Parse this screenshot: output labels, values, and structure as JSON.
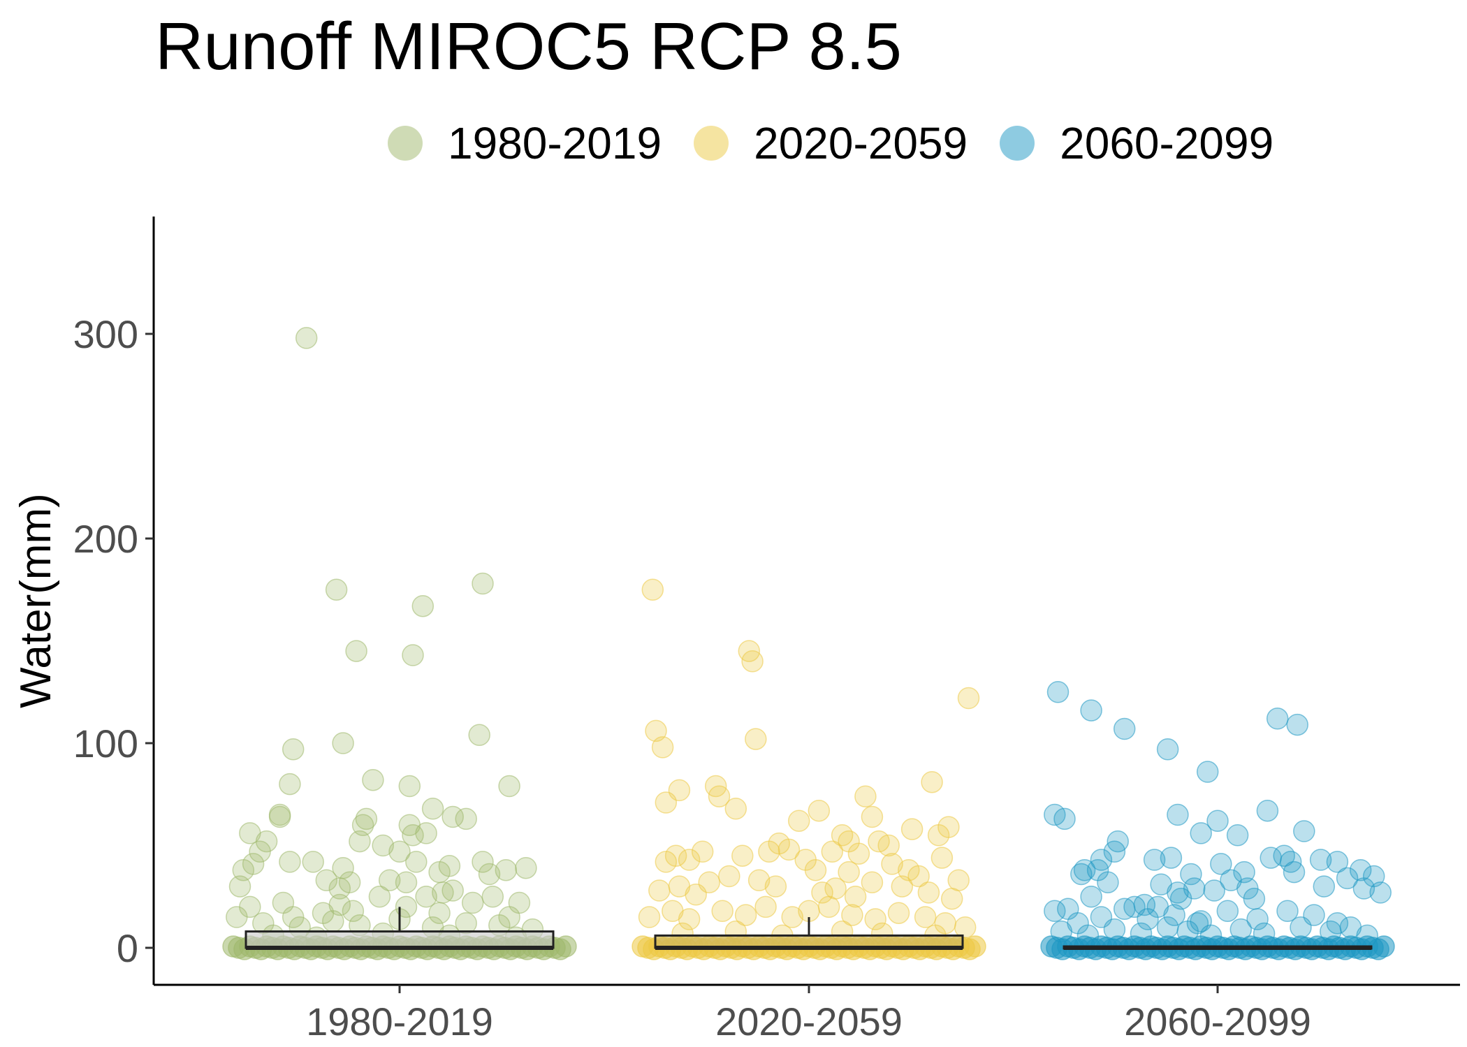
{
  "chart_data": {
    "type": "box-jitter",
    "title": "Runoff MIROC5 RCP 8.5",
    "ylabel": "Water(mm)",
    "xlabel": "",
    "categories": [
      "1980-2019",
      "2020-2059",
      "2060-2099"
    ],
    "yticks": [
      0,
      100,
      200,
      300
    ],
    "ylim": [
      -17,
      357
    ],
    "legend_position": "top",
    "grid": false,
    "colors": [
      "#9fb86b",
      "#ecc944",
      "#1e97c3"
    ],
    "box_fill": [
      "#c8c8c8",
      "#c8b25f",
      "#1e97c3"
    ],
    "box_stats": [
      {
        "q1": 0,
        "median": 0,
        "q3": 8,
        "whisker_low": 0,
        "whisker_high": 20
      },
      {
        "q1": 0,
        "median": 0,
        "q3": 6,
        "whisker_low": 0,
        "whisker_high": 15
      },
      {
        "q1": 0,
        "median": 0,
        "q3": 0.5,
        "whisker_low": 0,
        "whisker_high": 1
      }
    ],
    "series": [
      {
        "name": "1980-2019",
        "points": [
          [
            0.22,
            298
          ],
          [
            0.31,
            175
          ],
          [
            0.37,
            145
          ],
          [
            0.33,
            100
          ],
          [
            0.18,
            97
          ],
          [
            0.17,
            80
          ],
          [
            0.42,
            82
          ],
          [
            0.75,
            178
          ],
          [
            0.57,
            167
          ],
          [
            0.54,
            143
          ],
          [
            0.74,
            104
          ],
          [
            0.83,
            79
          ],
          [
            0.53,
            79
          ],
          [
            0.14,
            65
          ],
          [
            0.05,
            56
          ],
          [
            0.14,
            64
          ],
          [
            0.4,
            63
          ],
          [
            0.7,
            63
          ],
          [
            0.66,
            64
          ],
          [
            0.6,
            68
          ],
          [
            0.1,
            52
          ],
          [
            0.08,
            47
          ],
          [
            0.39,
            60
          ],
          [
            0.38,
            52
          ],
          [
            0.45,
            50
          ],
          [
            0.53,
            60
          ],
          [
            0.58,
            56
          ],
          [
            0.54,
            55
          ],
          [
            0.5,
            47
          ],
          [
            0.06,
            41
          ],
          [
            0.17,
            42
          ],
          [
            0.24,
            42
          ],
          [
            0.03,
            38
          ],
          [
            0.02,
            30
          ],
          [
            0.28,
            33
          ],
          [
            0.33,
            39
          ],
          [
            0.32,
            29
          ],
          [
            0.35,
            32
          ],
          [
            0.55,
            42
          ],
          [
            0.47,
            33
          ],
          [
            0.52,
            32
          ],
          [
            0.62,
            37
          ],
          [
            0.65,
            40
          ],
          [
            0.63,
            27
          ],
          [
            0.75,
            42
          ],
          [
            0.77,
            36
          ],
          [
            0.82,
            38
          ],
          [
            0.88,
            39
          ],
          [
            0.05,
            20
          ],
          [
            0.15,
            22
          ],
          [
            0.18,
            15
          ],
          [
            0.27,
            17
          ],
          [
            0.32,
            21
          ],
          [
            0.44,
            25
          ],
          [
            0.52,
            20
          ],
          [
            0.58,
            25
          ],
          [
            0.66,
            28
          ],
          [
            0.72,
            22
          ],
          [
            0.78,
            25
          ],
          [
            0.86,
            22
          ],
          [
            0.09,
            12
          ],
          [
            0.2,
            10
          ],
          [
            0.3,
            13
          ],
          [
            0.38,
            11
          ],
          [
            0.5,
            14
          ],
          [
            0.6,
            10
          ],
          [
            0.7,
            12
          ],
          [
            0.8,
            11
          ],
          [
            0.9,
            9
          ],
          [
            0.12,
            6
          ],
          [
            0.25,
            5
          ],
          [
            0.45,
            7
          ],
          [
            0.65,
            6
          ],
          [
            0.85,
            5
          ],
          [
            0.01,
            15
          ],
          [
            0.36,
            18
          ],
          [
            0.62,
            17
          ],
          [
            0.83,
            15
          ]
        ]
      },
      {
        "name": "2020-2059",
        "points": [
          [
            0.03,
            175
          ],
          [
            0.32,
            145
          ],
          [
            0.33,
            140
          ],
          [
            0.34,
            102
          ],
          [
            0.04,
            106
          ],
          [
            0.06,
            98
          ],
          [
            0.98,
            122
          ],
          [
            0.07,
            71
          ],
          [
            0.11,
            77
          ],
          [
            0.22,
            79
          ],
          [
            0.23,
            74
          ],
          [
            0.28,
            68
          ],
          [
            0.53,
            67
          ],
          [
            0.67,
            74
          ],
          [
            0.69,
            64
          ],
          [
            0.87,
            81
          ],
          [
            0.92,
            59
          ],
          [
            0.89,
            55
          ],
          [
            0.47,
            62
          ],
          [
            0.6,
            55
          ],
          [
            0.62,
            52
          ],
          [
            0.71,
            52
          ],
          [
            0.74,
            50
          ],
          [
            0.81,
            58
          ],
          [
            0.41,
            51
          ],
          [
            0.38,
            47
          ],
          [
            0.44,
            48
          ],
          [
            0.57,
            47
          ],
          [
            0.65,
            46
          ],
          [
            0.9,
            44
          ],
          [
            0.07,
            42
          ],
          [
            0.1,
            45
          ],
          [
            0.14,
            43
          ],
          [
            0.18,
            47
          ],
          [
            0.3,
            45
          ],
          [
            0.35,
            33
          ],
          [
            0.49,
            43
          ],
          [
            0.52,
            38
          ],
          [
            0.62,
            37
          ],
          [
            0.75,
            41
          ],
          [
            0.8,
            38
          ],
          [
            0.83,
            35
          ],
          [
            0.95,
            33
          ],
          [
            0.05,
            28
          ],
          [
            0.11,
            30
          ],
          [
            0.16,
            26
          ],
          [
            0.2,
            32
          ],
          [
            0.26,
            35
          ],
          [
            0.4,
            30
          ],
          [
            0.54,
            27
          ],
          [
            0.58,
            29
          ],
          [
            0.64,
            25
          ],
          [
            0.69,
            32
          ],
          [
            0.78,
            30
          ],
          [
            0.86,
            27
          ],
          [
            0.93,
            24
          ],
          [
            0.02,
            15
          ],
          [
            0.09,
            18
          ],
          [
            0.14,
            14
          ],
          [
            0.24,
            18
          ],
          [
            0.31,
            16
          ],
          [
            0.37,
            20
          ],
          [
            0.45,
            15
          ],
          [
            0.5,
            18
          ],
          [
            0.56,
            20
          ],
          [
            0.63,
            16
          ],
          [
            0.7,
            14
          ],
          [
            0.77,
            17
          ],
          [
            0.85,
            15
          ],
          [
            0.91,
            12
          ],
          [
            0.97,
            10
          ],
          [
            0.12,
            7
          ],
          [
            0.28,
            8
          ],
          [
            0.42,
            6
          ],
          [
            0.6,
            8
          ],
          [
            0.72,
            7
          ],
          [
            0.88,
            6
          ]
        ]
      },
      {
        "name": "2060-2099",
        "points": [
          [
            0.02,
            125
          ],
          [
            0.12,
            116
          ],
          [
            0.22,
            107
          ],
          [
            0.35,
            97
          ],
          [
            0.68,
            112
          ],
          [
            0.74,
            109
          ],
          [
            0.47,
            86
          ],
          [
            0.01,
            65
          ],
          [
            0.04,
            63
          ],
          [
            0.38,
            65
          ],
          [
            0.5,
            62
          ],
          [
            0.65,
            67
          ],
          [
            0.45,
            56
          ],
          [
            0.56,
            55
          ],
          [
            0.76,
            57
          ],
          [
            0.2,
            52
          ],
          [
            0.19,
            47
          ],
          [
            0.15,
            43
          ],
          [
            0.1,
            38
          ],
          [
            0.09,
            36
          ],
          [
            0.14,
            38
          ],
          [
            0.31,
            43
          ],
          [
            0.36,
            44
          ],
          [
            0.51,
            41
          ],
          [
            0.42,
            36
          ],
          [
            0.58,
            37
          ],
          [
            0.7,
            45
          ],
          [
            0.72,
            42
          ],
          [
            0.81,
            43
          ],
          [
            0.86,
            42
          ],
          [
            0.93,
            38
          ],
          [
            0.97,
            35
          ],
          [
            0.12,
            25
          ],
          [
            0.17,
            32
          ],
          [
            0.25,
            20
          ],
          [
            0.33,
            31
          ],
          [
            0.38,
            27
          ],
          [
            0.43,
            29
          ],
          [
            0.49,
            28
          ],
          [
            0.54,
            33
          ],
          [
            0.59,
            29
          ],
          [
            0.66,
            44
          ],
          [
            0.73,
            37
          ],
          [
            0.82,
            30
          ],
          [
            0.89,
            34
          ],
          [
            0.94,
            29
          ],
          [
            0.99,
            27
          ],
          [
            0.01,
            18
          ],
          [
            0.05,
            19
          ],
          [
            0.08,
            12
          ],
          [
            0.15,
            15
          ],
          [
            0.22,
            19
          ],
          [
            0.28,
            21
          ],
          [
            0.32,
            20
          ],
          [
            0.37,
            16
          ],
          [
            0.45,
            13
          ],
          [
            0.53,
            18
          ],
          [
            0.62,
            14
          ],
          [
            0.71,
            18
          ],
          [
            0.79,
            16
          ],
          [
            0.86,
            12
          ],
          [
            0.9,
            10
          ],
          [
            0.03,
            8
          ],
          [
            0.11,
            6
          ],
          [
            0.19,
            9
          ],
          [
            0.27,
            7
          ],
          [
            0.35,
            10
          ],
          [
            0.41,
            8
          ],
          [
            0.48,
            6
          ],
          [
            0.57,
            9
          ],
          [
            0.64,
            7
          ],
          [
            0.75,
            10
          ],
          [
            0.84,
            8
          ],
          [
            0.95,
            6
          ],
          [
            0.29,
            14
          ],
          [
            0.39,
            24
          ],
          [
            0.44,
            12
          ],
          [
            0.61,
            24
          ]
        ]
      }
    ]
  }
}
